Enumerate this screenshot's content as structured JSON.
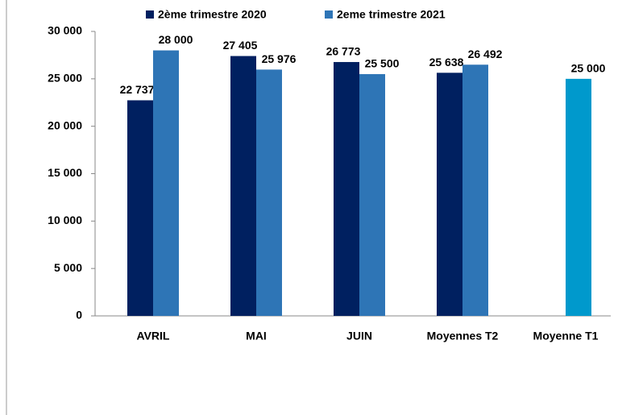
{
  "chart_data": {
    "type": "bar",
    "categories": [
      "AVRIL",
      "MAI",
      "JUIN",
      "Moyennes T2",
      "Moyenne T1"
    ],
    "series": [
      {
        "name": "2ème trimestre 2020",
        "color": "#002060",
        "values": [
          22737,
          27405,
          26773,
          25638,
          null
        ],
        "value_labels": [
          "22 737",
          "27 405",
          "26 773",
          "25 638",
          null
        ]
      },
      {
        "name": "2eme trimestre 2021",
        "color": "#2e75b6",
        "colors": [
          "#2e75b6",
          "#2e75b6",
          "#2e75b6",
          "#2e75b6",
          "#0099cc"
        ],
        "values": [
          28000,
          25976,
          25500,
          26492,
          25000
        ],
        "value_labels": [
          "28 000",
          "25 976",
          "25 500",
          "26 492",
          "25 000"
        ]
      }
    ],
    "ylim": [
      0,
      30000
    ],
    "yticks": [
      0,
      {
        "value": 5000,
        "label": "5 000"
      },
      {
        "value": 10000,
        "label": "10 000"
      },
      {
        "value": 15000,
        "label": "15 000"
      },
      {
        "value": 20000,
        "label": "20 000"
      },
      {
        "value": 25000,
        "label": "25 000"
      },
      {
        "value": 30000,
        "label": "30 000"
      }
    ],
    "grid": false
  }
}
